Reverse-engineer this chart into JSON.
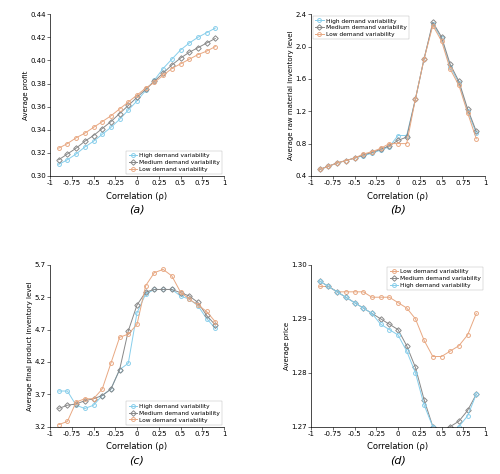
{
  "x": [
    -0.9,
    -0.8,
    -0.7,
    -0.6,
    -0.5,
    -0.4,
    -0.3,
    -0.2,
    -0.1,
    0.0,
    0.1,
    0.2,
    0.3,
    0.4,
    0.5,
    0.6,
    0.7,
    0.8,
    0.9
  ],
  "a_high": [
    0.31,
    0.314,
    0.319,
    0.325,
    0.33,
    0.336,
    0.342,
    0.349,
    0.357,
    0.365,
    0.374,
    0.383,
    0.393,
    0.401,
    0.409,
    0.415,
    0.42,
    0.424,
    0.428
  ],
  "a_medium": [
    0.314,
    0.319,
    0.324,
    0.33,
    0.335,
    0.341,
    0.347,
    0.354,
    0.361,
    0.368,
    0.375,
    0.382,
    0.389,
    0.396,
    0.402,
    0.407,
    0.411,
    0.415,
    0.419
  ],
  "a_low": [
    0.324,
    0.328,
    0.333,
    0.337,
    0.342,
    0.347,
    0.352,
    0.358,
    0.364,
    0.37,
    0.376,
    0.381,
    0.387,
    0.393,
    0.397,
    0.401,
    0.405,
    0.408,
    0.412
  ],
  "b_high": [
    0.48,
    0.52,
    0.56,
    0.59,
    0.62,
    0.65,
    0.68,
    0.72,
    0.76,
    0.9,
    0.9,
    1.35,
    1.85,
    2.28,
    2.1,
    1.75,
    1.55,
    1.2,
    0.93
  ],
  "b_medium": [
    0.48,
    0.52,
    0.56,
    0.59,
    0.62,
    0.66,
    0.69,
    0.73,
    0.77,
    0.84,
    0.88,
    1.35,
    1.85,
    2.3,
    2.12,
    1.78,
    1.57,
    1.23,
    0.95
  ],
  "b_low": [
    0.48,
    0.52,
    0.56,
    0.59,
    0.62,
    0.67,
    0.7,
    0.74,
    0.8,
    0.8,
    0.8,
    1.35,
    1.85,
    2.26,
    2.07,
    1.72,
    1.52,
    1.18,
    0.86
  ],
  "c_high": [
    3.75,
    3.75,
    3.53,
    3.48,
    3.53,
    3.68,
    3.78,
    4.08,
    4.18,
    4.96,
    5.25,
    5.32,
    5.32,
    5.32,
    5.22,
    5.17,
    5.07,
    4.87,
    4.72
  ],
  "c_medium": [
    3.48,
    3.53,
    3.55,
    3.6,
    3.63,
    3.68,
    3.78,
    4.08,
    4.68,
    5.08,
    5.28,
    5.32,
    5.32,
    5.32,
    5.27,
    5.22,
    5.12,
    4.92,
    4.77
  ],
  "c_low": [
    3.23,
    3.28,
    3.58,
    3.63,
    3.63,
    3.78,
    4.18,
    4.58,
    4.63,
    4.78,
    5.38,
    5.58,
    5.63,
    5.53,
    5.28,
    5.17,
    5.08,
    4.98,
    4.82
  ],
  "d_low": [
    1.296,
    1.296,
    1.295,
    1.295,
    1.295,
    1.295,
    1.294,
    1.294,
    1.294,
    1.293,
    1.292,
    1.29,
    1.286,
    1.283,
    1.283,
    1.284,
    1.285,
    1.287,
    1.291
  ],
  "d_medium": [
    1.297,
    1.296,
    1.295,
    1.294,
    1.293,
    1.292,
    1.291,
    1.29,
    1.289,
    1.288,
    1.285,
    1.281,
    1.275,
    1.27,
    1.269,
    1.27,
    1.271,
    1.273,
    1.276
  ],
  "d_high": [
    1.297,
    1.296,
    1.295,
    1.294,
    1.293,
    1.292,
    1.291,
    1.289,
    1.288,
    1.287,
    1.284,
    1.28,
    1.274,
    1.27,
    1.268,
    1.269,
    1.27,
    1.272,
    1.276
  ],
  "color_high": "#87CEEB",
  "color_medium": "#888888",
  "color_low": "#E8A882",
  "marker_high": "o",
  "marker_medium": "D",
  "marker_low": "o",
  "label_high": "High demand variability",
  "label_medium": "Medium demand variability",
  "label_low": "Low demand variability",
  "xlabel": "Correlation (ρ)",
  "a_ylabel": "Average profit",
  "b_ylabel": "Average raw material inventory level",
  "c_ylabel": "Average final product inventory level",
  "d_ylabel": "Average price",
  "a_ylim": [
    0.3,
    0.44
  ],
  "b_ylim": [
    0.4,
    2.4
  ],
  "c_ylim": [
    3.2,
    5.7
  ],
  "d_ylim": [
    1.27,
    1.3
  ],
  "a_yticks": [
    0.3,
    0.32,
    0.34,
    0.36,
    0.38,
    0.4,
    0.42,
    0.44
  ],
  "b_yticks": [
    0.4,
    0.8,
    1.2,
    1.6,
    2.0,
    2.4
  ],
  "c_yticks": [
    3.2,
    3.7,
    4.2,
    4.7,
    5.2,
    5.7
  ],
  "d_yticks": [
    1.27,
    1.28,
    1.29,
    1.3
  ],
  "xticks": [
    -1,
    -0.75,
    -0.5,
    -0.25,
    0,
    0.25,
    0.5,
    0.75,
    1
  ],
  "subfig_labels": [
    "(a)",
    "(b)",
    "(c)",
    "(d)"
  ]
}
